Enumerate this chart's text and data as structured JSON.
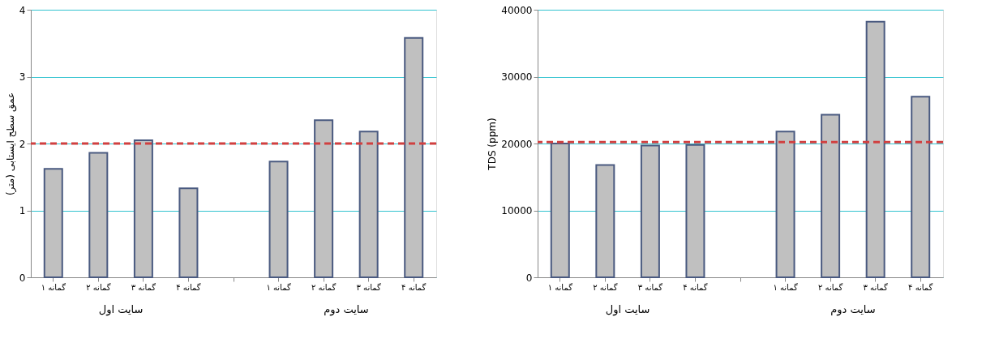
{
  "chart_data": [
    {
      "type": "bar",
      "ylabel": "عمق سطح ایستابی (متر)",
      "categories": [
        "گمانه ۱",
        "گمانه ۲",
        "گمانه ۳",
        "گمانه ۴",
        null,
        "گمانه ۱",
        "گمانه ۲",
        "گمانه ۳",
        "گمانه ۴"
      ],
      "series": [
        {
          "color": "#c0c0c0",
          "values": [
            1.62,
            1.86,
            2.05,
            1.33,
            null,
            1.73,
            2.35,
            2.18,
            3.58
          ]
        }
      ],
      "ylim": [
        0,
        4
      ],
      "yticks": [
        0,
        1,
        2,
        3,
        4
      ],
      "grid": "y",
      "ref_lines": [
        {
          "axis": "y",
          "value": 2,
          "color": "#d04040",
          "line_style": "dashed"
        }
      ],
      "annotations": [
        "سایت اول",
        "سایت دوم"
      ]
    },
    {
      "type": "bar",
      "ylabel": "TDS (ppm)",
      "categories": [
        "گمانه ۱",
        "گمانه ۲",
        "گمانه ۳",
        "گمانه ۴",
        null,
        "گمانه ۱",
        "گمانه ۲",
        "گمانه ۳",
        "گمانه ۴"
      ],
      "series": [
        {
          "color": "#c0c0c0",
          "values": [
            20000,
            16800,
            19700,
            19800,
            null,
            21800,
            24300,
            38200,
            27000
          ]
        }
      ],
      "ylim": [
        0,
        40000
      ],
      "yticks": [
        0,
        10000,
        20000,
        30000,
        40000
      ],
      "grid": "y",
      "ref_lines": [
        {
          "axis": "y",
          "value": 20200,
          "color": "#d04040",
          "line_style": "dashed"
        }
      ],
      "annotations": [
        "سایت اول",
        "سایت دوم"
      ]
    }
  ]
}
